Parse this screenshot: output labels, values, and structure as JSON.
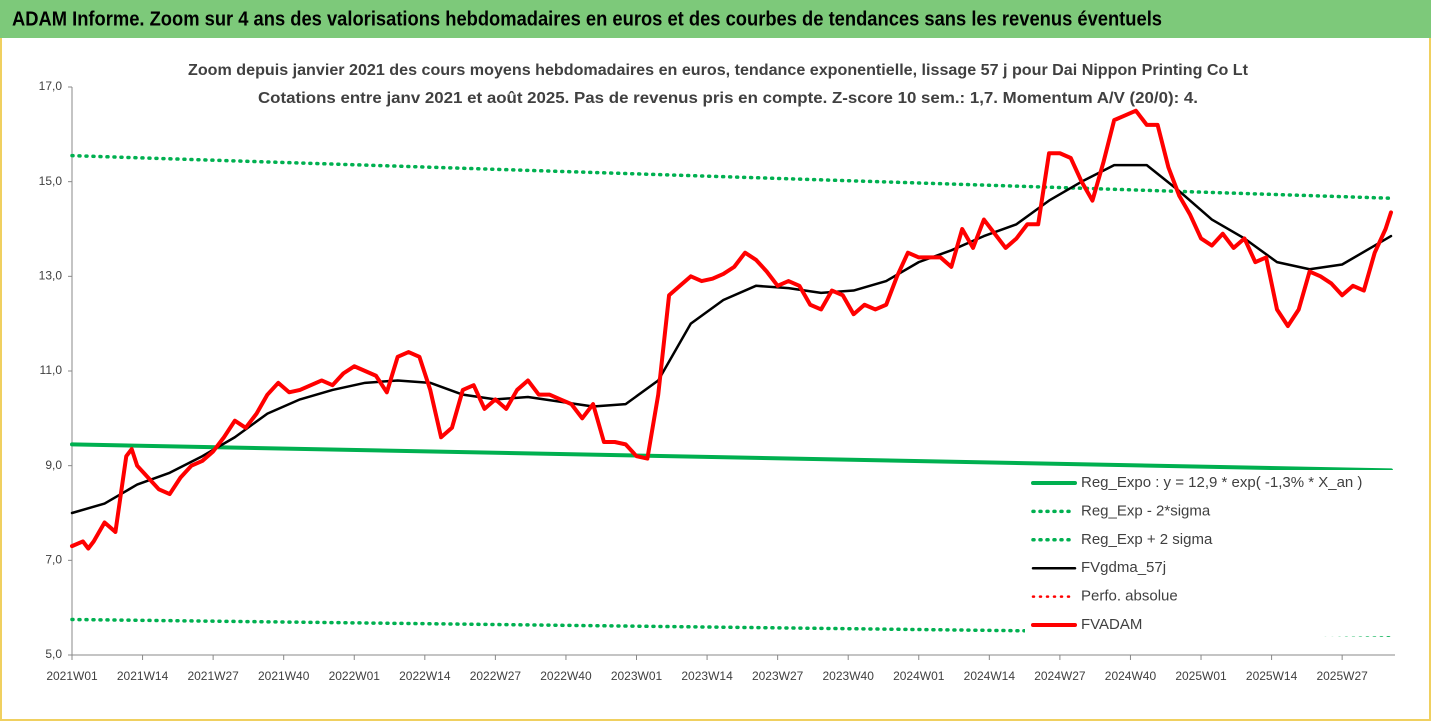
{
  "header": {
    "title": "ADAM Informe. Zoom sur 4 ans des valorisations hebdomadaires en euros et des courbes de tendances sans les revenus éventuels"
  },
  "chart_data": {
    "type": "line",
    "title": "Zoom depuis janvier 2021 des cours moyens hebdomadaires en euros, tendance exponentielle, lissage 57 j pour Dai Nippon Printing Co Lt",
    "subtitle": "Cotations entre janv 2021 et août 2025.  Pas de revenus pris en compte. Z-score 10 sem.: 1,7. Momentum A/V (20/0): 4.",
    "xlim": [
      0,
      243
    ],
    "xticks": [
      {
        "value": 0,
        "label": "2021W01"
      },
      {
        "value": 13,
        "label": "2021W14"
      },
      {
        "value": 26,
        "label": "2021W27"
      },
      {
        "value": 39,
        "label": "2021W40"
      },
      {
        "value": 52,
        "label": "2022W01"
      },
      {
        "value": 65,
        "label": "2022W14"
      },
      {
        "value": 78,
        "label": "2022W27"
      },
      {
        "value": 91,
        "label": "2022W40"
      },
      {
        "value": 104,
        "label": "2023W01"
      },
      {
        "value": 117,
        "label": "2023W14"
      },
      {
        "value": 130,
        "label": "2023W27"
      },
      {
        "value": 143,
        "label": "2023W40"
      },
      {
        "value": 156,
        "label": "2024W01"
      },
      {
        "value": 169,
        "label": "2024W14"
      },
      {
        "value": 182,
        "label": "2024W27"
      },
      {
        "value": 195,
        "label": "2024W40"
      },
      {
        "value": 208,
        "label": "2025W01"
      },
      {
        "value": 221,
        "label": "2025W14"
      },
      {
        "value": 234,
        "label": "2025W27"
      }
    ],
    "ylim": [
      5,
      17
    ],
    "yticks": [
      {
        "value": 5,
        "label": "5,0"
      },
      {
        "value": 7,
        "label": "7,0"
      },
      {
        "value": 9,
        "label": "9,0"
      },
      {
        "value": 11,
        "label": "11,0"
      },
      {
        "value": 13,
        "label": "13,0"
      },
      {
        "value": 15,
        "label": "15,0"
      },
      {
        "value": 17,
        "label": "17,0"
      }
    ],
    "legend": "bottom-right",
    "series": [
      {
        "name": "Reg_Expo : y = 12,9 * exp( -1,3% *  X_an )",
        "color": "#00b050",
        "style": "solid",
        "width": 4,
        "x": [
          0,
          243
        ],
        "values": [
          9.45,
          8.9
        ]
      },
      {
        "name": "Reg_Exp - 2*sigma",
        "color": "#00b050",
        "style": "dotted",
        "width": 3.5,
        "x": [
          0,
          243
        ],
        "values": [
          5.75,
          5.42
        ]
      },
      {
        "name": "Reg_Exp + 2 sigma",
        "color": "#00b050",
        "style": "dotted",
        "width": 3.5,
        "x": [
          0,
          243
        ],
        "values": [
          15.55,
          14.65
        ]
      },
      {
        "name": "FVgdma_57j",
        "color": "#000000",
        "style": "solid",
        "width": 2.5,
        "x": [
          0,
          6,
          12,
          18,
          24,
          30,
          36,
          42,
          48,
          54,
          60,
          66,
          72,
          78,
          84,
          90,
          96,
          102,
          108,
          114,
          120,
          126,
          132,
          138,
          144,
          150,
          156,
          162,
          168,
          174,
          180,
          186,
          192,
          198,
          204,
          210,
          216,
          222,
          228,
          234,
          240,
          243
        ],
        "values": [
          8.0,
          8.2,
          8.6,
          8.85,
          9.2,
          9.6,
          10.1,
          10.4,
          10.6,
          10.75,
          10.8,
          10.75,
          10.5,
          10.4,
          10.45,
          10.35,
          10.25,
          10.3,
          10.8,
          12.0,
          12.5,
          12.8,
          12.75,
          12.65,
          12.7,
          12.9,
          13.3,
          13.55,
          13.85,
          14.1,
          14.6,
          15.0,
          15.35,
          15.35,
          14.8,
          14.2,
          13.8,
          13.3,
          13.15,
          13.25,
          13.65,
          13.85
        ]
      },
      {
        "name": "Perfo. absolue",
        "color": "#ff0000",
        "style": "dotted",
        "width": 2.5,
        "x": [],
        "values": []
      },
      {
        "name": "FVADAM",
        "color": "#ff0000",
        "style": "solid",
        "width": 4,
        "x": [
          0,
          2,
          3,
          4,
          6,
          8,
          10,
          11,
          12,
          14,
          16,
          18,
          20,
          22,
          24,
          26,
          28,
          30,
          32,
          34,
          36,
          38,
          40,
          42,
          44,
          46,
          48,
          50,
          52,
          54,
          56,
          58,
          60,
          62,
          64,
          66,
          68,
          70,
          72,
          74,
          76,
          78,
          80,
          82,
          84,
          86,
          88,
          90,
          92,
          94,
          96,
          98,
          100,
          102,
          104,
          106,
          108,
          110,
          112,
          114,
          116,
          118,
          120,
          122,
          124,
          126,
          128,
          130,
          132,
          134,
          136,
          138,
          140,
          142,
          144,
          146,
          148,
          150,
          152,
          154,
          156,
          158,
          160,
          162,
          164,
          166,
          168,
          170,
          172,
          174,
          176,
          178,
          180,
          182,
          184,
          186,
          188,
          190,
          192,
          194,
          196,
          198,
          200,
          202,
          204,
          206,
          208,
          210,
          212,
          214,
          216,
          218,
          220,
          222,
          224,
          226,
          228,
          230,
          232,
          234,
          236,
          238,
          240,
          242,
          243
        ],
        "values": [
          7.3,
          7.4,
          7.25,
          7.4,
          7.8,
          7.6,
          9.2,
          9.35,
          9.0,
          8.75,
          8.5,
          8.4,
          8.75,
          9.0,
          9.1,
          9.3,
          9.6,
          9.95,
          9.8,
          10.1,
          10.5,
          10.75,
          10.55,
          10.6,
          10.7,
          10.8,
          10.7,
          10.95,
          11.1,
          11.0,
          10.9,
          10.55,
          11.3,
          11.4,
          11.3,
          10.6,
          9.6,
          9.8,
          10.6,
          10.7,
          10.2,
          10.4,
          10.2,
          10.6,
          10.8,
          10.5,
          10.5,
          10.4,
          10.3,
          10.0,
          10.3,
          9.5,
          9.5,
          9.45,
          9.2,
          9.15,
          10.5,
          12.6,
          12.8,
          13.0,
          12.9,
          12.95,
          13.05,
          13.2,
          13.5,
          13.35,
          13.1,
          12.8,
          12.9,
          12.8,
          12.4,
          12.3,
          12.7,
          12.6,
          12.2,
          12.4,
          12.3,
          12.4,
          13.0,
          13.5,
          13.4,
          13.4,
          13.4,
          13.2,
          14.0,
          13.6,
          14.2,
          13.9,
          13.6,
          13.8,
          14.1,
          14.1,
          15.6,
          15.6,
          15.5,
          15.0,
          14.6,
          15.4,
          16.3,
          16.4,
          16.5,
          16.2,
          16.2,
          15.3,
          14.7,
          14.3,
          13.8,
          13.65,
          13.9,
          13.6,
          13.8,
          13.3,
          13.4,
          12.3,
          11.95,
          12.3,
          13.1,
          13.0,
          12.85,
          12.6,
          12.8,
          12.7,
          13.5,
          14.0,
          14.35
        ]
      }
    ]
  }
}
